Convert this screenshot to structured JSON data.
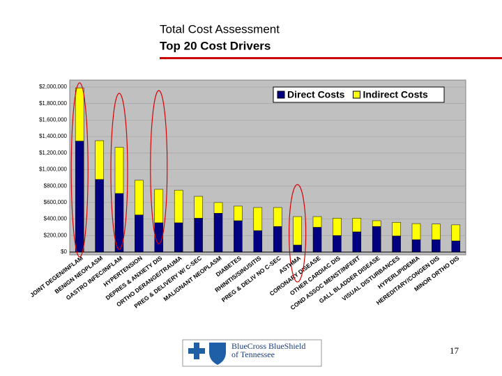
{
  "title": "Total Cost Assessment",
  "subtitle": "Top 20 Cost Drivers",
  "page_number": "17",
  "logo": {
    "line1": "BlueCross BlueShield",
    "line2": "of Tennessee"
  },
  "chart_data": {
    "type": "stacked_bar",
    "categories": [
      "JOINT DEGEN/INFLAM",
      "BENIGN NEOPLASM",
      "GASTRO INFEC/INFLAM",
      "HYPERTENSION",
      "DEPRES & ANXIETY DIS",
      "ORTHO DERANGE/TRAUMA",
      "PREG & DELIVERY W/ C-SEC",
      "MALIGNANT NEOPLASM",
      "DIABETES",
      "RHINITIS/SINUSITIS",
      "PREG & DELIV NO C-SEC",
      "ASTHMA",
      "CORONARY DISEASE",
      "OTHER CARDIAC DIS",
      "COND ASSOC MENST/INFERT",
      "GALL BLADDER DISEASE",
      "VISUAL DISTURBANCES",
      "HYPERLIPIDEMIA",
      "HEREDITARY/CONGEN DIS",
      "MINOR ORTHO DIS"
    ],
    "series": [
      {
        "name": "Direct Costs",
        "color": "#000080",
        "values": [
          1345000,
          880000,
          710000,
          450000,
          355000,
          355000,
          410000,
          470000,
          380000,
          260000,
          310000,
          85000,
          300000,
          200000,
          245000,
          310000,
          195000,
          150000,
          150000,
          135000
        ]
      },
      {
        "name": "Indirect Costs",
        "color": "#ffff00",
        "values": [
          645000,
          470000,
          560000,
          420000,
          405000,
          395000,
          265000,
          130000,
          177000,
          280000,
          230000,
          345000,
          130000,
          210000,
          165000,
          70000,
          165000,
          195000,
          190000,
          195000
        ]
      }
    ],
    "ylim": [
      0,
      2000000
    ],
    "yticks": [
      {
        "value": 0,
        "label": "$0"
      },
      {
        "value": 200000,
        "label": "$200,000"
      },
      {
        "value": 400000,
        "label": "$400,000"
      },
      {
        "value": 600000,
        "label": "$600,000"
      },
      {
        "value": 800000,
        "label": "$800,000"
      },
      {
        "value": 1000000,
        "label": "$1,000,000"
      },
      {
        "value": 1200000,
        "label": "$1,200,000"
      },
      {
        "value": 1400000,
        "label": "$1,400,000"
      },
      {
        "value": 1600000,
        "label": "$1,600,000"
      },
      {
        "value": 1800000,
        "label": "$1,800,000"
      },
      {
        "value": 2000000,
        "label": "$2,000,000"
      }
    ],
    "grid": true,
    "legend": "top-right"
  }
}
